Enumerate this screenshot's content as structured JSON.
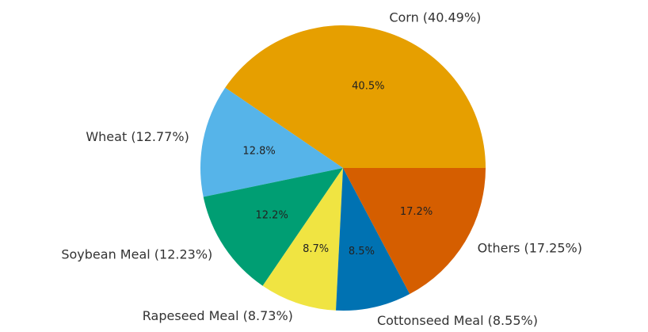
{
  "chart_data": {
    "type": "pie",
    "categories": [
      "Corn (40.49%)",
      "Wheat (12.77%)",
      "Soybean Meal (12.23%)",
      "Rapeseed Meal (8.73%)",
      "Cottonseed Meal (8.55%)",
      "Others (17.25%)"
    ],
    "values": [
      40.49,
      12.77,
      12.23,
      8.73,
      8.55,
      17.25
    ],
    "value_labels": [
      "40.5%",
      "12.8%",
      "12.2%",
      "8.7%",
      "8.5%",
      "17.2%"
    ],
    "colors": [
      "#e69f00",
      "#56b4e9",
      "#009e73",
      "#f0e442",
      "#0072b2",
      "#d55e00"
    ]
  }
}
